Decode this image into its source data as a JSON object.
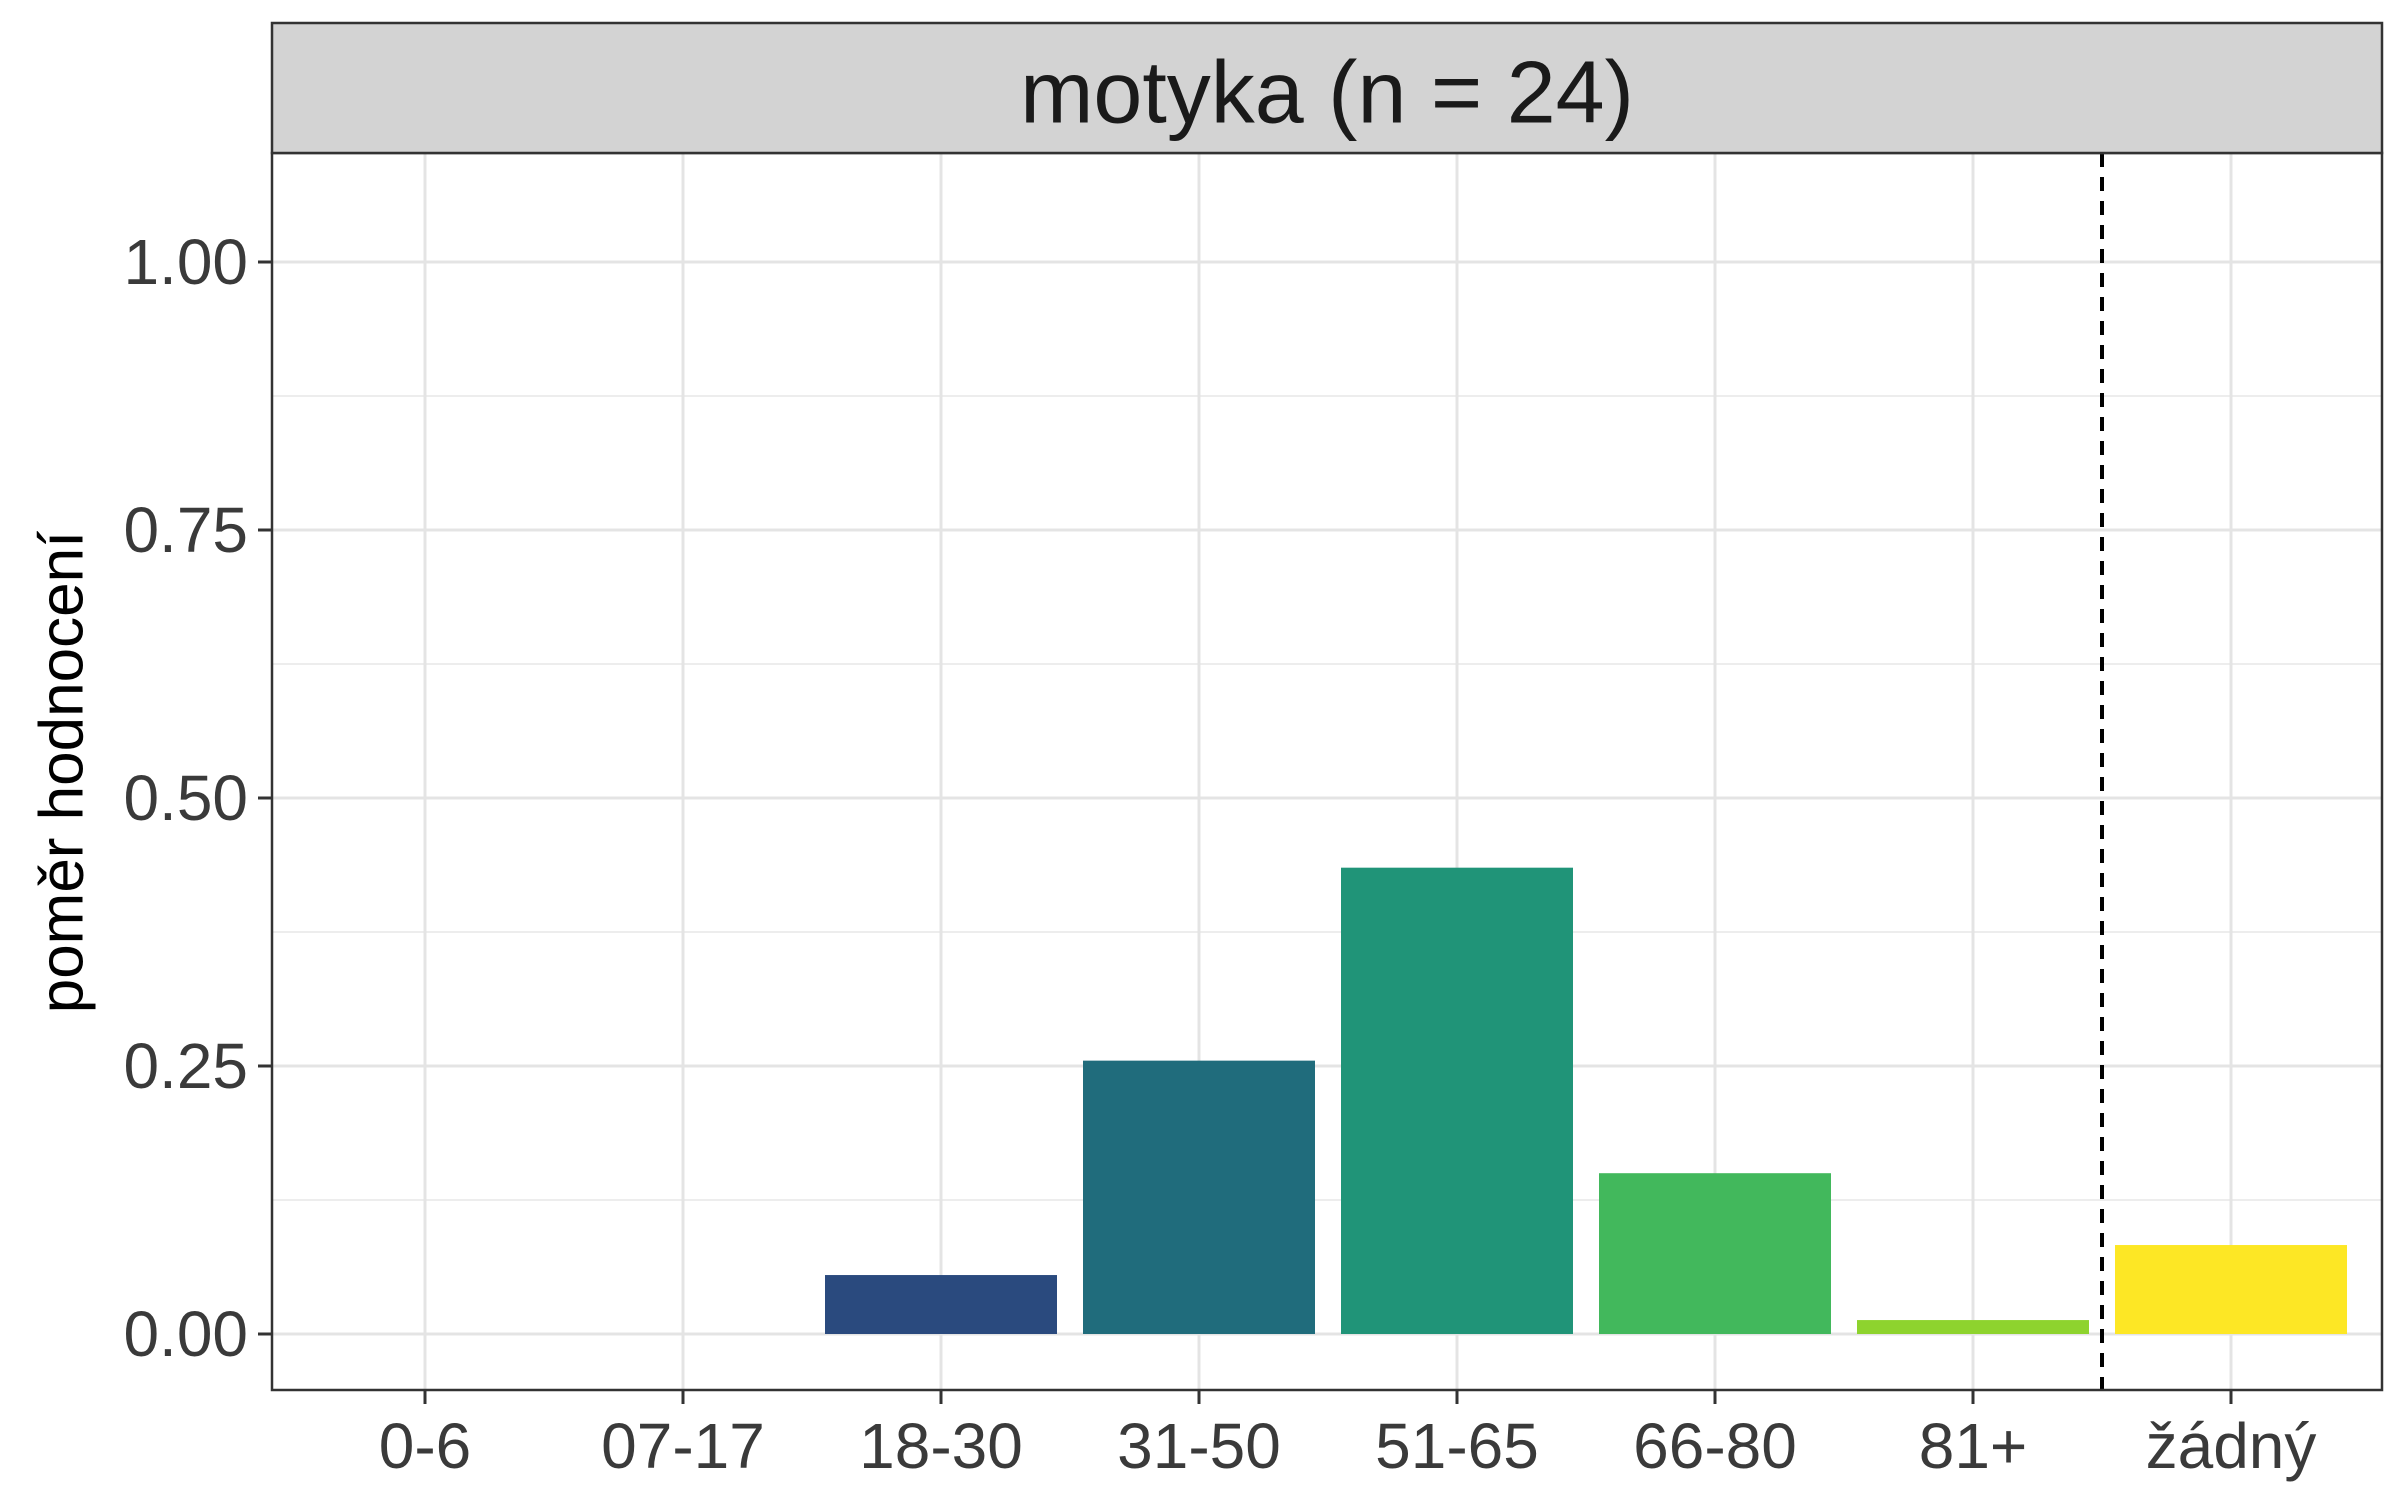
{
  "chart_data": {
    "type": "bar",
    "facet_title": "motyka (n = 24)",
    "categories": [
      "0-6",
      "07-17",
      "18-30",
      "31-50",
      "51-65",
      "66-80",
      "81+",
      "žádný"
    ],
    "values": [
      0,
      0,
      0.055,
      0.255,
      0.435,
      0.15,
      0.013,
      0.083
    ],
    "colors": [
      "#440154",
      "#46327e",
      "#2a4a7e",
      "#206c7c",
      "#209478",
      "#42b85c",
      "#8ed32e",
      "#fde725"
    ],
    "xlabel": "",
    "ylabel": "poměr hodnocení",
    "ylim": [
      -0.05,
      1.1
    ],
    "yticks": [
      0,
      0.25,
      0.5,
      0.75,
      1
    ],
    "ytick_labels": [
      "0.00",
      "0.25",
      "0.50",
      "0.75",
      "1.00"
    ],
    "reference_line": {
      "between": [
        "81+",
        "žádný"
      ],
      "style": "dashed"
    },
    "grid": true,
    "legend": "none"
  }
}
